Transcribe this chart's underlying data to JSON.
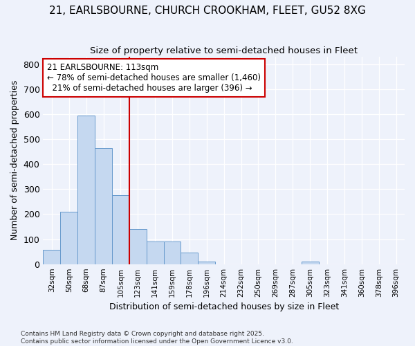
{
  "title_line1": "21, EARLSBOURNE, CHURCH CROOKHAM, FLEET, GU52 8XG",
  "title_line2": "Size of property relative to semi-detached houses in Fleet",
  "xlabel": "Distribution of semi-detached houses by size in Fleet",
  "ylabel": "Number of semi-detached properties",
  "categories": [
    "32sqm",
    "50sqm",
    "68sqm",
    "87sqm",
    "105sqm",
    "123sqm",
    "141sqm",
    "159sqm",
    "178sqm",
    "196sqm",
    "214sqm",
    "232sqm",
    "250sqm",
    "269sqm",
    "287sqm",
    "305sqm",
    "323sqm",
    "341sqm",
    "360sqm",
    "378sqm",
    "396sqm"
  ],
  "values": [
    57,
    210,
    595,
    465,
    275,
    140,
    90,
    90,
    45,
    10,
    0,
    0,
    0,
    0,
    0,
    10,
    0,
    0,
    0,
    0,
    0
  ],
  "bar_color": "#c5d8f0",
  "bar_edge_color": "#6699cc",
  "vline_color": "#cc0000",
  "annotation_title": "21 EARLSBOURNE: 113sqm",
  "annotation_line2": "← 78% of semi-detached houses are smaller (1,460)",
  "annotation_line3": "21% of semi-detached houses are larger (396) →",
  "annotation_box_color": "#cc0000",
  "background_color": "#eef2fb",
  "grid_color": "#ffffff",
  "ylim": [
    0,
    830
  ],
  "yticks": [
    0,
    100,
    200,
    300,
    400,
    500,
    600,
    700,
    800
  ],
  "footer_line1": "Contains HM Land Registry data © Crown copyright and database right 2025.",
  "footer_line2": "Contains public sector information licensed under the Open Government Licence v3.0."
}
